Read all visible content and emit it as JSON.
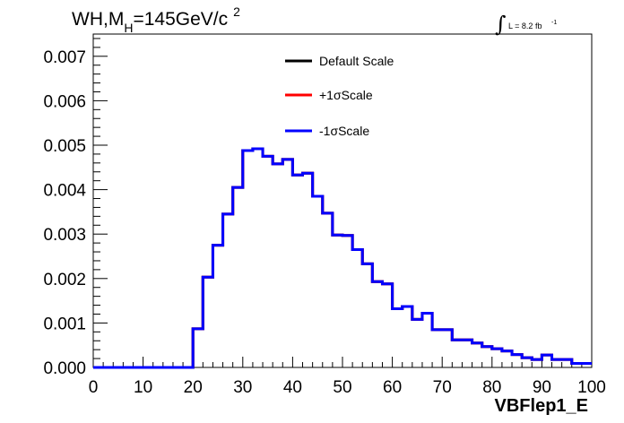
{
  "chart_data": {
    "type": "line",
    "title_main": "WH,M",
    "title_sub": "H",
    "title_rest": "=145GeV/c",
    "title_sup": "2",
    "lumi": {
      "symbol": "∫",
      "text": "L = 8.2 fb",
      "sup": "-1"
    },
    "xlabel": "VBFlep1_E",
    "xlim": [
      0,
      100
    ],
    "ylim": [
      0,
      0.0075
    ],
    "x_ticks": [
      0,
      10,
      20,
      30,
      40,
      50,
      60,
      70,
      80,
      90,
      100
    ],
    "x_tick_labels": [
      "0",
      "10",
      "20",
      "30",
      "40",
      "50",
      "60",
      "70",
      "80",
      "90",
      "100"
    ],
    "y_ticks": [
      0,
      0.001,
      0.002,
      0.003,
      0.004,
      0.005,
      0.006,
      0.007
    ],
    "y_tick_labels": [
      "0.000",
      "0.001",
      "0.002",
      "0.003",
      "0.004",
      "0.005",
      "0.006",
      "0.007"
    ],
    "bin_edges": [
      0,
      2,
      4,
      6,
      8,
      10,
      12,
      14,
      16,
      18,
      20,
      22,
      24,
      26,
      28,
      30,
      32,
      34,
      36,
      38,
      40,
      42,
      44,
      46,
      48,
      50,
      52,
      54,
      56,
      58,
      60,
      62,
      64,
      66,
      68,
      70,
      72,
      74,
      76,
      78,
      80,
      82,
      84,
      86,
      88,
      90,
      92,
      94,
      96,
      98,
      100
    ],
    "legend_position": "top-center",
    "grid": false,
    "series": [
      {
        "name": "Default Scale",
        "color": "#000000",
        "values": [
          0,
          0,
          0,
          0,
          0,
          0,
          0,
          0,
          0,
          0,
          0.00087,
          0.00203,
          0.00275,
          0.00345,
          0.00405,
          0.00488,
          0.00492,
          0.00475,
          0.00458,
          0.00468,
          0.00433,
          0.00437,
          0.00385,
          0.00347,
          0.00298,
          0.00297,
          0.00265,
          0.00233,
          0.00193,
          0.00188,
          0.00132,
          0.00137,
          0.00108,
          0.00122,
          0.00085,
          0.00085,
          0.00062,
          0.00062,
          0.00055,
          0.00047,
          0.00042,
          0.00037,
          0.00029,
          0.00022,
          0.00018,
          0.00028,
          0.00018,
          0.00018,
          9e-05,
          9e-05
        ]
      },
      {
        "name": "+1σScale",
        "color": "#ff0000",
        "values": [
          0,
          0,
          0,
          0,
          0,
          0,
          0,
          0,
          0,
          0,
          0.00087,
          0.00203,
          0.00275,
          0.00345,
          0.00405,
          0.00488,
          0.00492,
          0.00475,
          0.00458,
          0.00468,
          0.00433,
          0.00437,
          0.00385,
          0.00347,
          0.00298,
          0.00297,
          0.00265,
          0.00233,
          0.00193,
          0.00188,
          0.00132,
          0.00137,
          0.00108,
          0.00122,
          0.00085,
          0.00085,
          0.00062,
          0.00062,
          0.00055,
          0.00047,
          0.00042,
          0.00037,
          0.00029,
          0.00022,
          0.00018,
          0.00028,
          0.00018,
          0.00018,
          9e-05,
          9e-05
        ]
      },
      {
        "name": "-1σScale",
        "color": "#0000ff",
        "values": [
          0,
          0,
          0,
          0,
          0,
          0,
          0,
          0,
          0,
          0,
          0.00087,
          0.00203,
          0.00275,
          0.00345,
          0.00405,
          0.00488,
          0.00492,
          0.00475,
          0.00458,
          0.00468,
          0.00433,
          0.00437,
          0.00385,
          0.00347,
          0.00298,
          0.00297,
          0.00265,
          0.00233,
          0.00193,
          0.00188,
          0.00132,
          0.00137,
          0.00108,
          0.00122,
          0.00085,
          0.00085,
          0.00062,
          0.00062,
          0.00055,
          0.00047,
          0.00042,
          0.00037,
          0.00029,
          0.00022,
          0.00018,
          0.00028,
          0.00018,
          0.00018,
          9e-05,
          9e-05
        ]
      }
    ]
  }
}
